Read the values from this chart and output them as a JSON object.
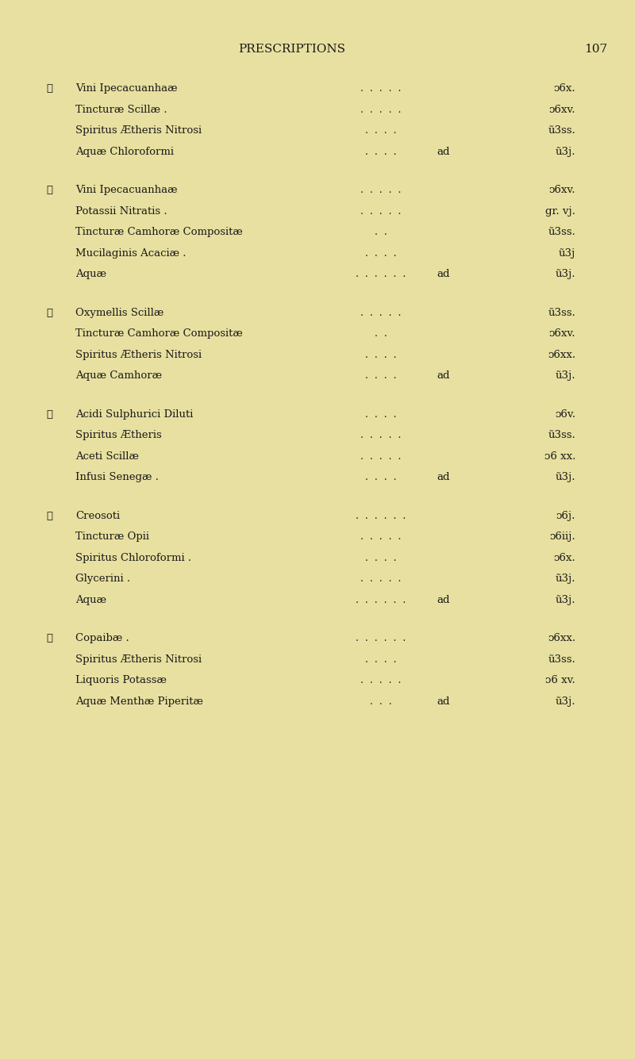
{
  "background_color": "#e8e0a0",
  "title": "PRESCRIPTIONS",
  "page_number": "107",
  "title_fontsize": 11,
  "body_fontsize": 9.5,
  "rx_symbol": "℞",
  "prescriptions": [
    {
      "lines": [
        {
          "name": "Vini Ipecacuanhaæ",
          "dot_count": 5,
          "prefix": "",
          "amount": "ᴐ6x."
        },
        {
          "name": "Tincturæ Scillæ .",
          "dot_count": 5,
          "prefix": "",
          "amount": "ᴐ6xv."
        },
        {
          "name": "Spiritus Ætheris Nitrosi",
          "dot_count": 4,
          "prefix": "",
          "amount": "ũ3ss."
        },
        {
          "name": "Aquæ Chloroformi",
          "dot_count": 4,
          "prefix": "ad",
          "amount": "ũ3j."
        }
      ]
    },
    {
      "lines": [
        {
          "name": "Vini Ipecacuanhaæ",
          "dot_count": 5,
          "prefix": "",
          "amount": "ᴐ6xv."
        },
        {
          "name": "Potassii Nitratis .",
          "dot_count": 5,
          "prefix": "",
          "amount": "gr. vj."
        },
        {
          "name": "Tincturæ Camhoræ Compositæ",
          "dot_count": 2,
          "prefix": "",
          "amount": "ũ3ss."
        },
        {
          "name": "Mucilaginis Acaciæ .",
          "dot_count": 4,
          "prefix": "",
          "amount": "ũ3j"
        },
        {
          "name": "Aquæ",
          "dot_count": 6,
          "prefix": "ad",
          "amount": "ũ3j."
        }
      ]
    },
    {
      "lines": [
        {
          "name": "Oxymellis Scillæ",
          "dot_count": 5,
          "prefix": "",
          "amount": "ũ3ss."
        },
        {
          "name": "Tincturæ Camhoræ Compositæ",
          "dot_count": 2,
          "prefix": "",
          "amount": "ᴐ6xv."
        },
        {
          "name": "Spiritus Ætheris Nitrosi",
          "dot_count": 4,
          "prefix": "",
          "amount": "ᴐ6xx."
        },
        {
          "name": "Aquæ Camhoræ",
          "dot_count": 4,
          "prefix": "ad",
          "amount": "ũ3j."
        }
      ]
    },
    {
      "lines": [
        {
          "name": "Acidi Sulphurici Diluti",
          "dot_count": 4,
          "prefix": "",
          "amount": "ᴐ6v."
        },
        {
          "name": "Spiritus Ætheris",
          "dot_count": 5,
          "prefix": "",
          "amount": "ũ3ss."
        },
        {
          "name": "Aceti Scillæ",
          "dot_count": 5,
          "prefix": "",
          "amount": "ᴐ6 xx."
        },
        {
          "name": "Infusi Senegæ .",
          "dot_count": 4,
          "prefix": "ad",
          "amount": "ũ3j."
        }
      ]
    },
    {
      "lines": [
        {
          "name": "Creosoti",
          "dot_count": 6,
          "prefix": "",
          "amount": "ᴐ6j."
        },
        {
          "name": "Tincturæ Opii",
          "dot_count": 5,
          "prefix": "",
          "amount": "ᴐ6iij."
        },
        {
          "name": "Spiritus Chloroformi .",
          "dot_count": 4,
          "prefix": "",
          "amount": "ᴐ6x."
        },
        {
          "name": "Glycerini .",
          "dot_count": 5,
          "prefix": "",
          "amount": "ũ3j."
        },
        {
          "name": "Aquæ",
          "dot_count": 6,
          "prefix": "ad",
          "amount": "ũ3j."
        }
      ]
    },
    {
      "lines": [
        {
          "name": "Copaibæ .",
          "dot_count": 6,
          "prefix": "",
          "amount": "ᴐ6xx."
        },
        {
          "name": "Spiritus Ætheris Nitrosi",
          "dot_count": 4,
          "prefix": "",
          "amount": "ũ3ss."
        },
        {
          "name": "Liquoris Potassæ",
          "dot_count": 5,
          "prefix": "",
          "amount": "ᴐ6 xv."
        },
        {
          "name": "Aquæ Menthæ Piperitæ",
          "dot_count": 3,
          "prefix": "ad",
          "amount": "ũ3j."
        }
      ]
    }
  ]
}
